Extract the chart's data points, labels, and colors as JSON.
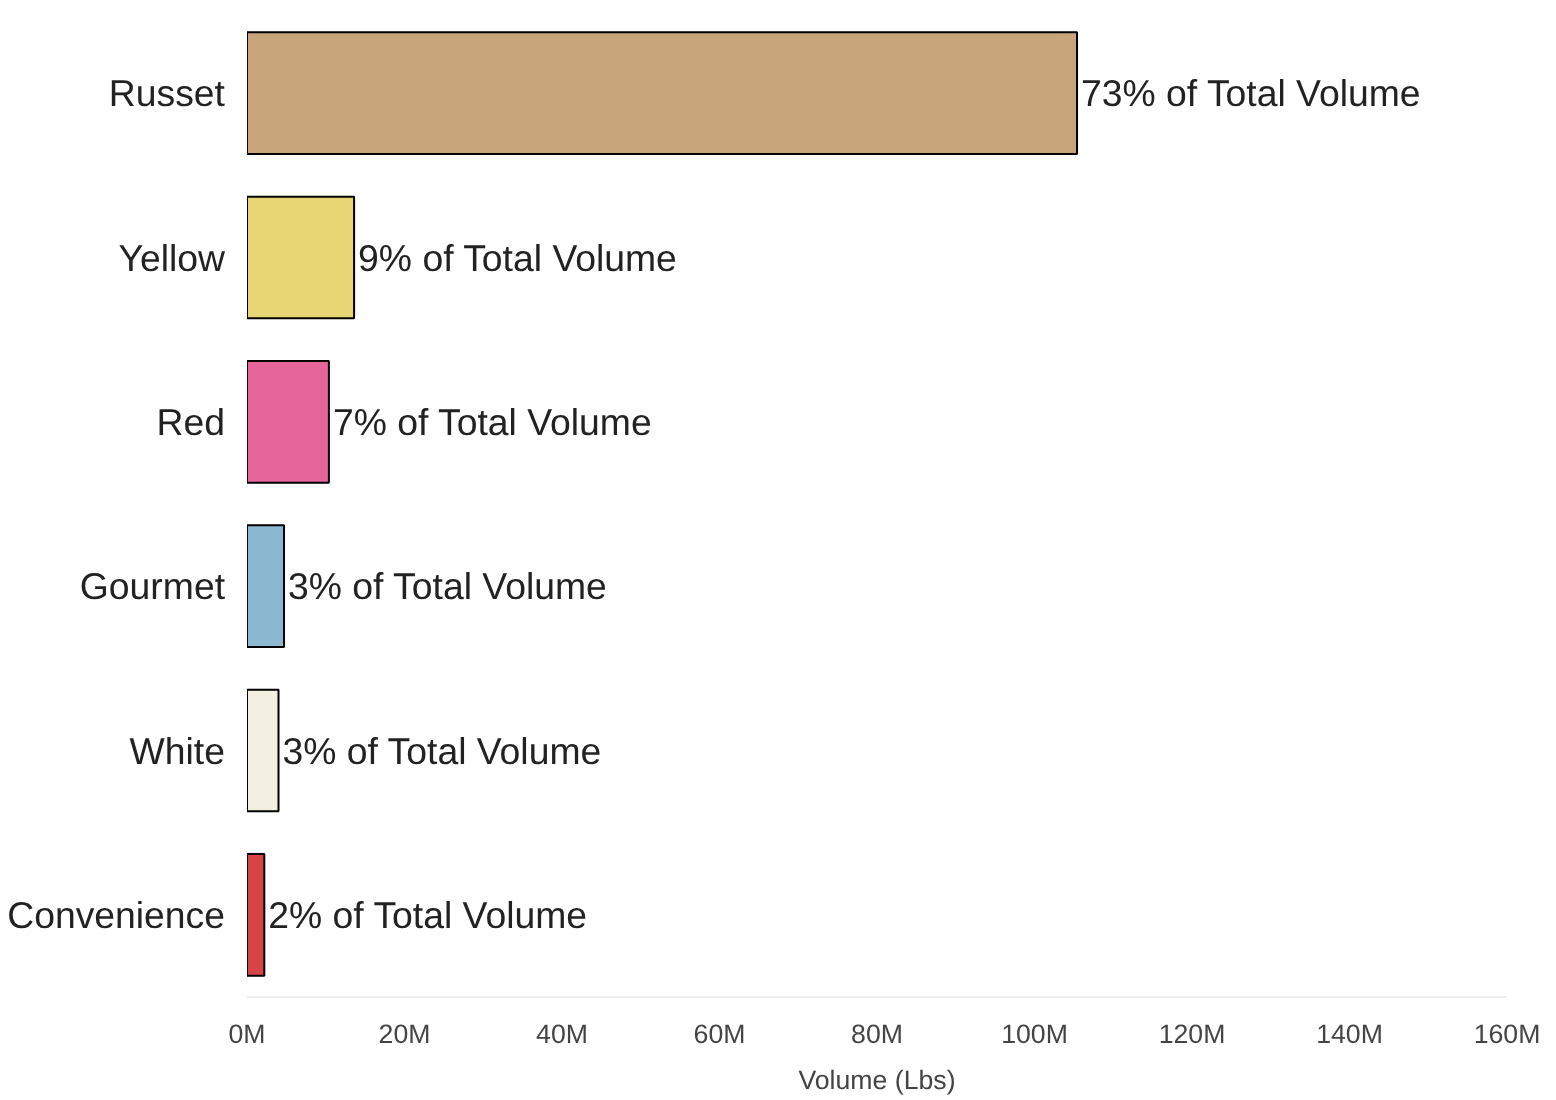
{
  "chart_data": {
    "type": "bar",
    "orientation": "horizontal",
    "xlabel": "Volume (Lbs)",
    "categories": [
      "Russet",
      "Yellow",
      "Red",
      "Gourmet",
      "White",
      "Convenience"
    ],
    "values": [
      105.4,
      13.6,
      10.4,
      4.7,
      4.0,
      2.2
    ],
    "colors": [
      "#c8a57a",
      "#e8d574",
      "#e6659a",
      "#8db8d2",
      "#f3f0e2",
      "#d64545"
    ],
    "annotations": [
      {
        "text": "73% of Total Volume",
        "x": 105.4,
        "y": "Russet"
      },
      {
        "text": "9% of Total Volume",
        "x": 13.6,
        "y": "Yellow"
      },
      {
        "text": "7% of Total Volume",
        "x": 10.4,
        "y": "Red"
      },
      {
        "text": "3% of Total Volume",
        "x": 4.7,
        "y": "Gourmet"
      },
      {
        "text": "3% of Total Volume",
        "x": 4.0,
        "y": "White"
      },
      {
        "text": "2% of Total Volume",
        "x": 2.2,
        "y": "Convenience"
      }
    ],
    "xlim": [
      0,
      160
    ],
    "xticks": [
      {
        "value": 0,
        "label": "0M"
      },
      {
        "value": 20,
        "label": "20M"
      },
      {
        "value": 40,
        "label": "40M"
      },
      {
        "value": 60,
        "label": "60M"
      },
      {
        "value": 80,
        "label": "80M"
      },
      {
        "value": 100,
        "label": "100M"
      },
      {
        "value": 120,
        "label": "120M"
      },
      {
        "value": 140,
        "label": "140M"
      },
      {
        "value": 160,
        "label": "160M"
      }
    ],
    "grid": false
  }
}
